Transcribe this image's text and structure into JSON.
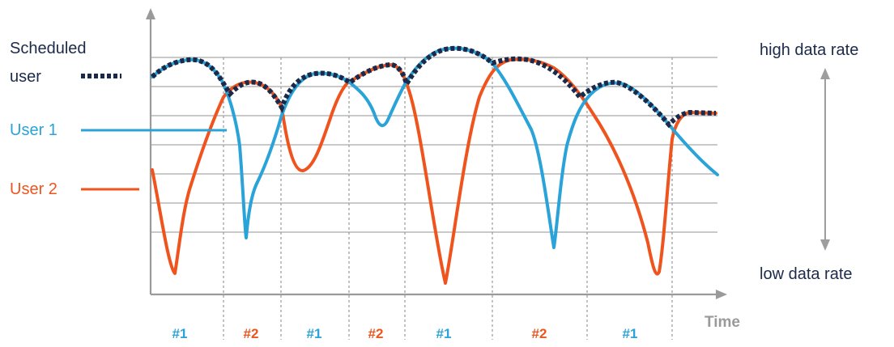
{
  "colors": {
    "user1": "#2aa3d8",
    "user2": "#f0541e",
    "scheduled": "#1b2a4a",
    "grid": "#a9a9a9",
    "axis": "#9a9a9a",
    "rate_arrow": "#9e9e9e"
  },
  "legend": {
    "scheduled_line1": "Scheduled",
    "scheduled_line2": "user",
    "user1": "User 1",
    "user2": "User 2"
  },
  "labels": {
    "high_rate": "high data rate",
    "low_rate": "low data rate",
    "time": "Time"
  },
  "slots": [
    {
      "label": "#1",
      "user": 1
    },
    {
      "label": "#2",
      "user": 2
    },
    {
      "label": "#1",
      "user": 1
    },
    {
      "label": "#2",
      "user": 2
    },
    {
      "label": "#1",
      "user": 1
    },
    {
      "label": "#2",
      "user": 2
    },
    {
      "label": "#1",
      "user": 1
    }
  ]
}
